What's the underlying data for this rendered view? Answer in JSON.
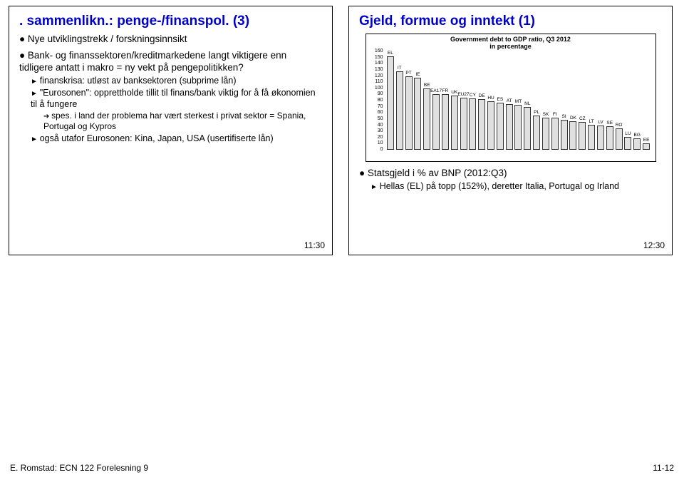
{
  "left": {
    "title": ". sammenlikn.: penge-/finanspol. (3)",
    "b1": "Nye utviklingstrekk / forskningsinnsikt",
    "b2": "Bank- og finanssektoren/kreditmarkedene langt viktigere enn tidligere antatt i makro = ny vekt på pengepolitikken?",
    "s1": "finanskrisa: utløst av banksektoren (subprime lån)",
    "s2": "\"Eurosonen\": opprettholde tillit til finans/bank viktig for å få økonomien til å fungere",
    "s2a": "spes. i land der problema har vært sterkest i privat sektor = Spania, Portugal og Kypros",
    "s3": "også utafor Eurosonen: Kina, Japan, USA (usertifiserte lån)",
    "time": "11:30"
  },
  "right": {
    "title": "Gjeld, formue og inntekt (1)",
    "b1": "Statsgjeld i % av BNP (2012:Q3)",
    "s1": "Hellas (EL) på topp (152%), deretter Italia, Portugal og Irland",
    "time": "12:30"
  },
  "chart": {
    "title_line1": "Government debt to GDP ratio, Q3 2012",
    "title_line2": "in percentage",
    "ylim_max": 160,
    "ytick_step": 10,
    "bar_fill": "#e0e0e0",
    "bar_border": "#333333",
    "grid_color": "#cccccc",
    "plot_border": "#000000",
    "bars": [
      {
        "label": "EL",
        "value": 152
      },
      {
        "label": "IT",
        "value": 127
      },
      {
        "label": "PT",
        "value": 120
      },
      {
        "label": "IE",
        "value": 117
      },
      {
        "label": "BE",
        "value": 100
      },
      {
        "label": "EA17",
        "value": 90
      },
      {
        "label": "FR",
        "value": 90
      },
      {
        "label": "UK",
        "value": 88
      },
      {
        "label": "EU27",
        "value": 85
      },
      {
        "label": "CY",
        "value": 84
      },
      {
        "label": "DE",
        "value": 82
      },
      {
        "label": "HU",
        "value": 79
      },
      {
        "label": "ES",
        "value": 77
      },
      {
        "label": "AT",
        "value": 74
      },
      {
        "label": "MT",
        "value": 73
      },
      {
        "label": "NL",
        "value": 70
      },
      {
        "label": "PL",
        "value": 56
      },
      {
        "label": "SK",
        "value": 52
      },
      {
        "label": "FI",
        "value": 52
      },
      {
        "label": "SI",
        "value": 49
      },
      {
        "label": "DK",
        "value": 46
      },
      {
        "label": "CZ",
        "value": 45
      },
      {
        "label": "LT",
        "value": 41
      },
      {
        "label": "LV",
        "value": 40
      },
      {
        "label": "SE",
        "value": 38
      },
      {
        "label": "RO",
        "value": 35
      },
      {
        "label": "LU",
        "value": 21
      },
      {
        "label": "BG",
        "value": 19
      },
      {
        "label": "EE",
        "value": 10
      }
    ]
  },
  "footer": {
    "left": "E. Romstad: ECN 122 Forelesning 9",
    "right": "11-12"
  }
}
